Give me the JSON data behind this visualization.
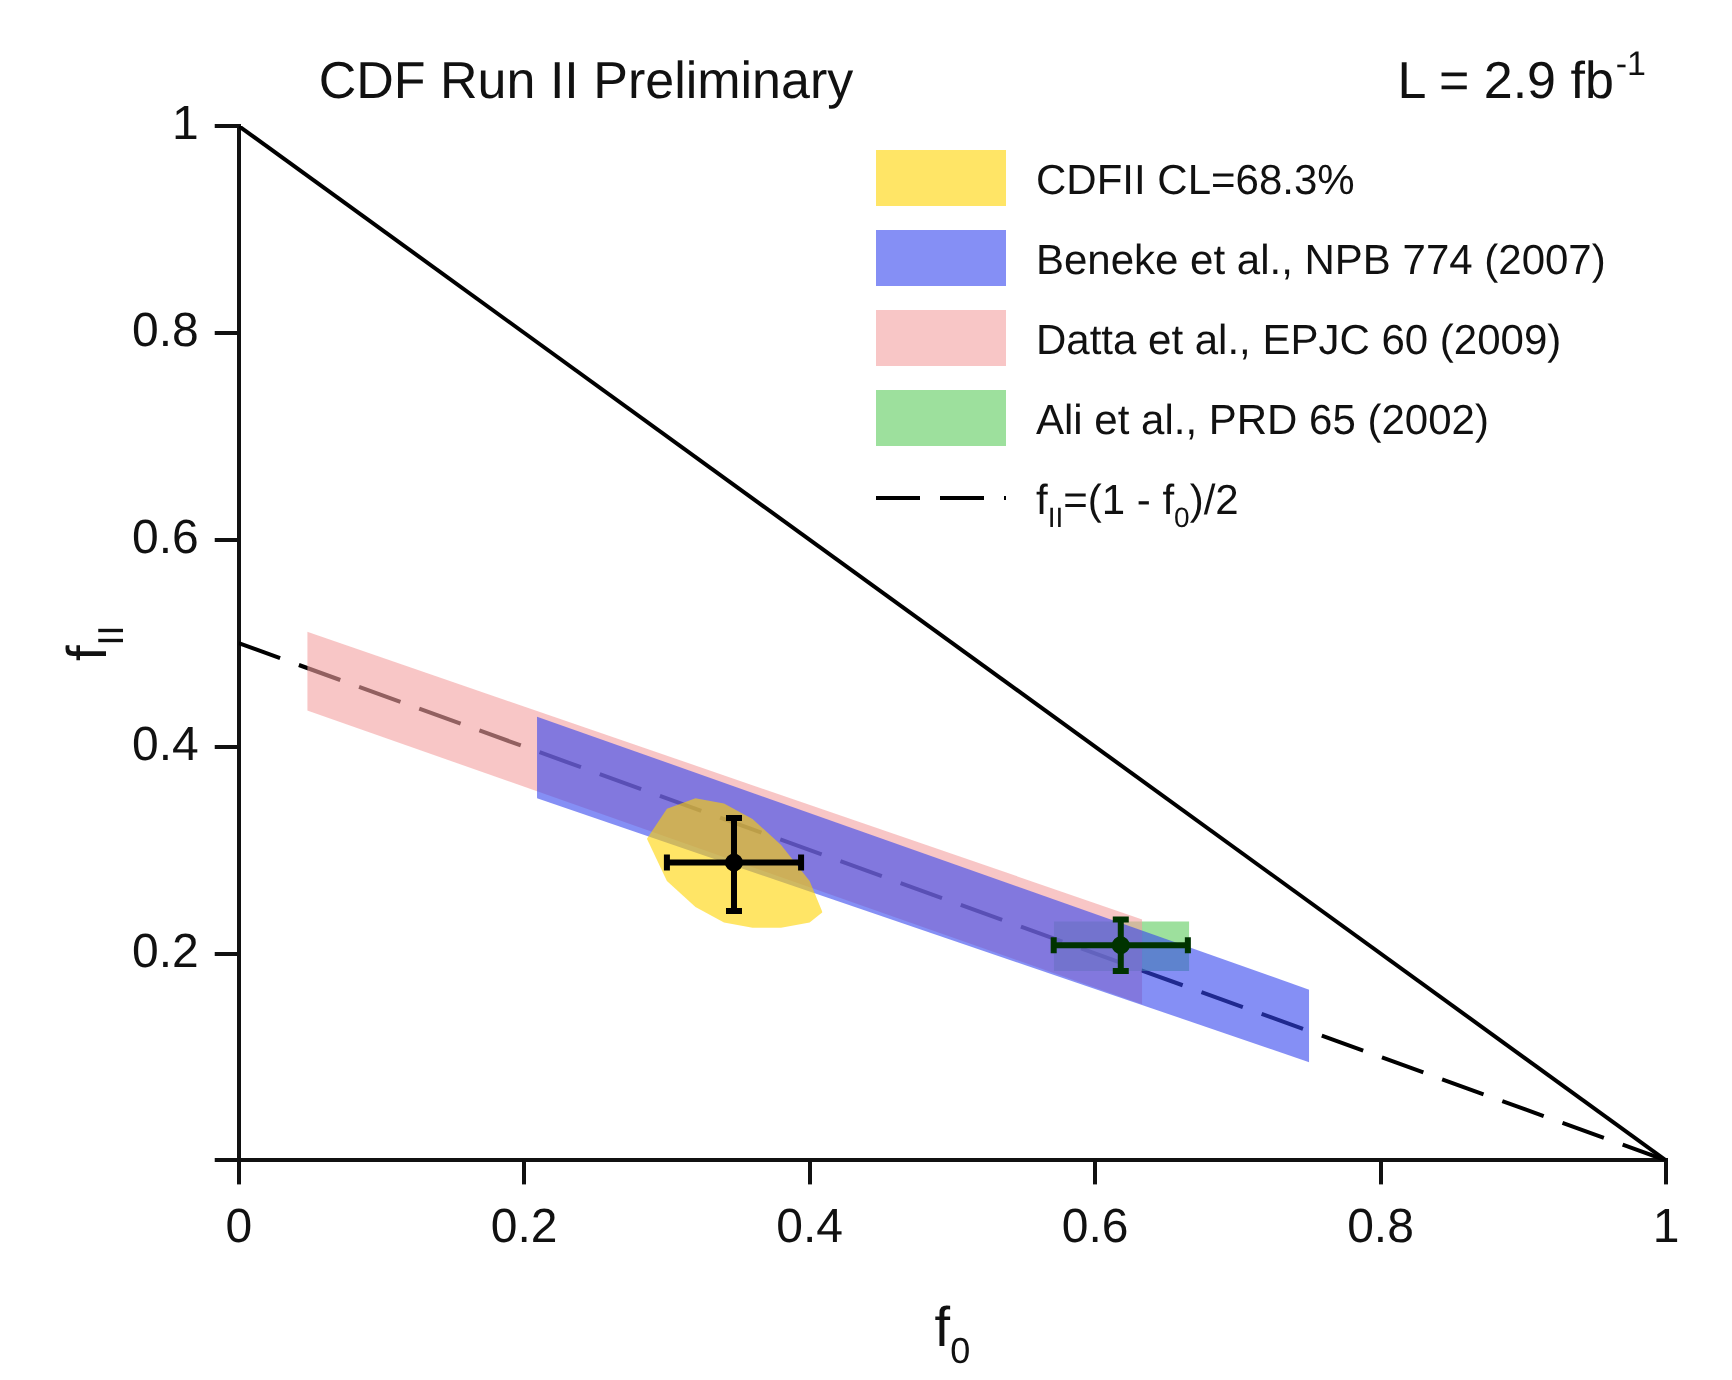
{
  "chart_data": {
    "type": "scatter",
    "title": "CDF Run II Preliminary",
    "xlabel": "f$_{0}$",
    "ylabel": "f$_{II}$",
    "annotations": [
      "L = 2.9 fb$^{-1}$"
    ],
    "xlim": [
      0,
      1
    ],
    "ylim": [
      0,
      1
    ],
    "xticks": [
      0,
      0.2,
      0.4,
      0.6,
      0.8,
      1
    ],
    "yticks": [
      {
        "value": 0,
        "label": null
      },
      0.2,
      0.4,
      0.6,
      0.8,
      1
    ],
    "grid": false,
    "legend": "top right",
    "series": [
      {
        "name": "CDFII CL=68.3%",
        "type": "area",
        "color": "#ffd400",
        "x": [
          0.286,
          0.3,
          0.32,
          0.34,
          0.36,
          0.38,
          0.4,
          0.409
        ],
        "values": [
          null,
          null,
          null,
          null,
          null,
          null,
          null,
          null
        ],
        "lower": [
          0.311,
          0.27,
          0.245,
          0.23,
          0.225,
          0.225,
          0.23,
          0.24
        ],
        "upper": [
          0.311,
          0.34,
          0.35,
          0.345,
          0.33,
          0.305,
          0.27,
          0.24
        ]
      },
      {
        "name": "Beneke et al., NPB 774 (2007)",
        "type": "area",
        "color": "#3344ee",
        "x": [
          0.209,
          0.75
        ],
        "values": [
          null,
          null
        ],
        "lower": [
          0.35,
          0.095
        ],
        "upper": [
          0.429,
          0.165
        ]
      },
      {
        "name": "Datta et al., EPJC 60 (2009)",
        "type": "area",
        "color": "#f4a0a0",
        "x": [
          0.048,
          0.633
        ],
        "values": [
          null,
          null
        ],
        "lower": [
          0.435,
          0.151
        ],
        "upper": [
          0.511,
          0.233
        ]
      },
      {
        "name": "Ali et al., PRD 65 (2002)",
        "type": "area",
        "color": "#5ccc5c",
        "x": [
          0.571,
          0.666
        ],
        "values": [
          null,
          null
        ],
        "lower": [
          0.183,
          0.183
        ],
        "upper": [
          0.231,
          0.231
        ]
      },
      {
        "color": "#000000",
        "x": [
          0.347
        ],
        "values": [
          0.288
        ],
        "errors": [
          [
            0.241,
            0.331
          ]
        ],
        "xerrors": [
          [
            0.3,
            0.394
          ]
        ],
        "marker": "circle"
      },
      {
        "color": "#003300",
        "x": [
          0.618
        ],
        "values": [
          0.208
        ],
        "errors": [
          0.025
        ],
        "xerrors": [
          0.047
        ],
        "marker": "circle"
      },
      {
        "name": "f$_{II}$=(1 - f$_{0}$)/2",
        "type": "line",
        "color": "#000000",
        "x": [
          0,
          1
        ],
        "values": [
          0.5,
          0
        ],
        "line_style": "dashed"
      },
      {
        "type": "line",
        "color": "#000000",
        "x": [
          0,
          1
        ],
        "values": [
          1,
          0
        ],
        "line_style": "solid"
      }
    ]
  }
}
